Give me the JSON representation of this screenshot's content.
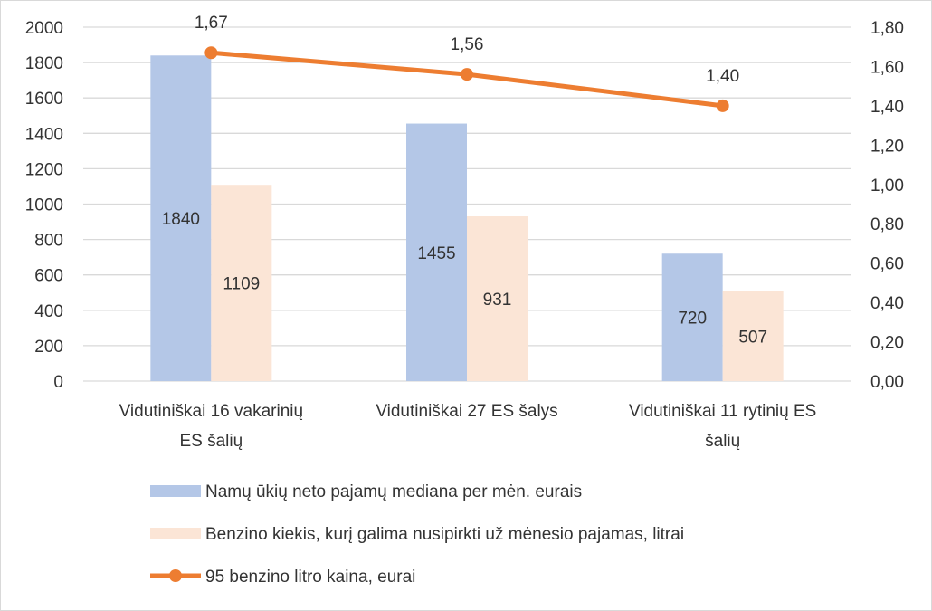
{
  "chart_data": {
    "type": "bar",
    "title": "",
    "categories": [
      [
        "Vidutiniškai 16 vakarinių",
        "ES šalių"
      ],
      [
        "Vidutiniškai 27 ES šalys"
      ],
      [
        "Vidutiniškai 11 rytinių ES",
        "šalių"
      ]
    ],
    "series": [
      {
        "name": "Namų ūkių neto pajamų mediana per mėn. eurais",
        "type": "bar",
        "axis": "left",
        "color": "#b4c7e7",
        "values": [
          1840,
          1455,
          720
        ],
        "labels": [
          "1840",
          "1455",
          "720"
        ]
      },
      {
        "name": "Benzino kiekis, kurį galima nusipirkti už mėnesio pajamas, litrai",
        "type": "bar",
        "axis": "left",
        "color": "#fbe5d6",
        "values": [
          1109,
          931,
          507
        ],
        "labels": [
          "1109",
          "931",
          "507"
        ]
      },
      {
        "name": "95 benzino litro kaina, eurai",
        "type": "line",
        "axis": "right",
        "color": "#ed7d31",
        "values": [
          1.67,
          1.56,
          1.4
        ],
        "labels": [
          "1,67",
          "1,56",
          "1,40"
        ]
      }
    ],
    "y_left": {
      "min": 0,
      "max": 2000,
      "step": 200,
      "ticks": [
        "0",
        "200",
        "400",
        "600",
        "800",
        "1000",
        "1200",
        "1400",
        "1600",
        "1800",
        "2000"
      ]
    },
    "y_right": {
      "min": 0,
      "max": 1.8,
      "step": 0.2,
      "ticks": [
        "0,00",
        "0,20",
        "0,40",
        "0,60",
        "0,80",
        "1,00",
        "1,20",
        "1,40",
        "1,60",
        "1,80"
      ]
    },
    "grid": true,
    "legend_position": "bottom"
  }
}
